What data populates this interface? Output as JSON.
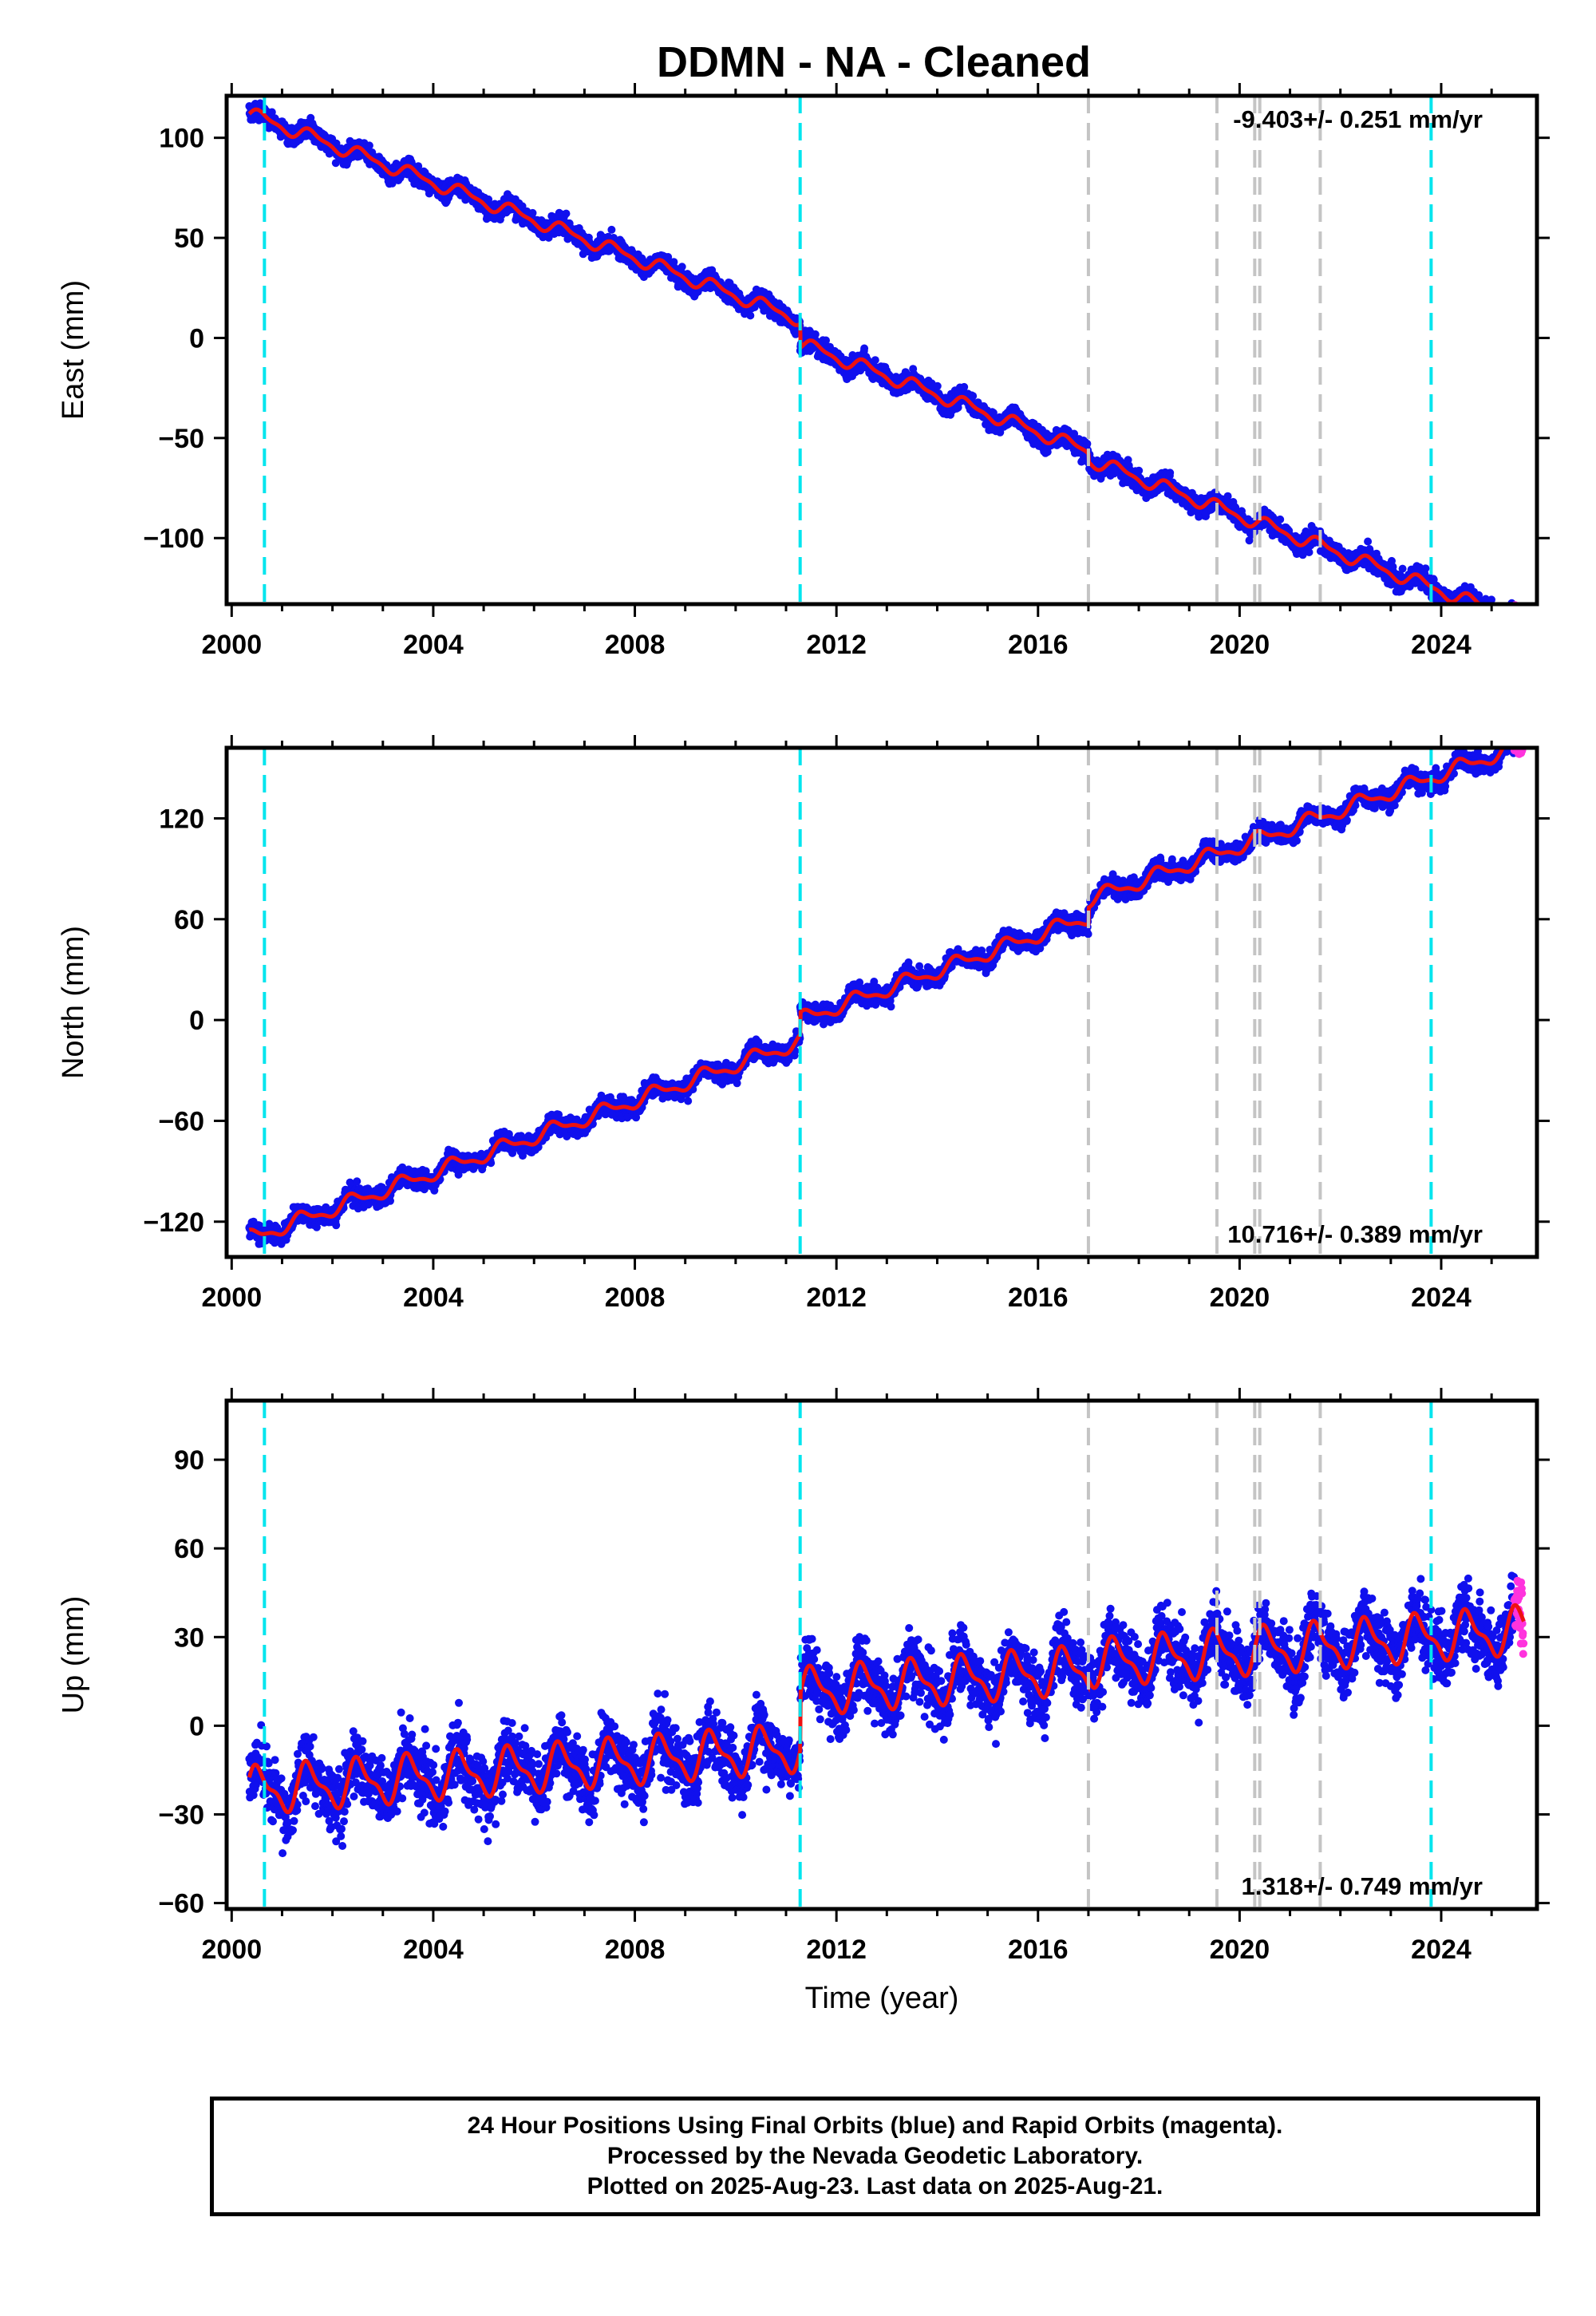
{
  "title": "DDMN  - NA - Cleaned",
  "colors": {
    "final_orbits": "#1010ee",
    "rapid_orbits": "#ff33dd",
    "model": "#ee1111",
    "equipment_change": "#00e5ee",
    "earthquake": "#c4c4c4",
    "axis": "#000000"
  },
  "chart_data": [
    {
      "type": "scatter",
      "panel": "east",
      "ylabel": "East (mm)",
      "xlabel": "",
      "xlim": [
        1999.9,
        2025.9
      ],
      "ylim": [
        -133,
        121
      ],
      "xticks": [
        2000,
        2004,
        2008,
        2012,
        2016,
        2020,
        2024
      ],
      "xtick_labels": [
        "2000",
        "2004",
        "2008",
        "2012",
        "2016",
        "2020",
        "2024"
      ],
      "yticks": [
        100,
        50,
        0,
        -50,
        -100
      ],
      "ytick_labels": [
        "100",
        "50",
        "0",
        "−50",
        "−100"
      ],
      "rate_annotation": "-9.403+/- 0.251 mm/yr",
      "annotation_position": "top-right",
      "series": [
        {
          "role": "model",
          "model": {
            "t0": 2000.35,
            "v0": 112,
            "rate": -9.403,
            "amp": 3.0,
            "phase": 0.0,
            "offsets": [
              {
                "t": 2011.28,
                "dy": -12
              },
              {
                "t": 2017.0,
                "dy": -4
              }
            ]
          },
          "noise": 3.0
        }
      ]
    },
    {
      "type": "scatter",
      "panel": "north",
      "ylabel": "North (mm)",
      "xlabel": "",
      "xlim": [
        1999.9,
        2025.9
      ],
      "ylim": [
        -141,
        162
      ],
      "xticks": [
        2000,
        2004,
        2008,
        2012,
        2016,
        2020,
        2024
      ],
      "xtick_labels": [
        "2000",
        "2004",
        "2008",
        "2012",
        "2016",
        "2020",
        "2024"
      ],
      "yticks": [
        120,
        60,
        0,
        -60,
        -120
      ],
      "ytick_labels": [
        "120",
        "60",
        "0",
        "−60",
        "−120"
      ],
      "rate_annotation": "10.716+/- 0.389 mm/yr",
      "annotation_position": "bottom-right",
      "series": [
        {
          "role": "model",
          "model": {
            "t0": 2000.35,
            "v0": -130,
            "rate": 10.716,
            "amp": 4.0,
            "phase": 1.2,
            "offsets": [
              {
                "t": 2011.28,
                "dy": 13
              },
              {
                "t": 2017.0,
                "dy": 10
              }
            ]
          },
          "noise": 3.5
        }
      ]
    },
    {
      "type": "scatter",
      "panel": "up",
      "ylabel": "Up (mm)",
      "xlabel": "Time (year)",
      "xlim": [
        1999.9,
        2025.9
      ],
      "ylim": [
        -62,
        110
      ],
      "xticks": [
        2000,
        2004,
        2008,
        2012,
        2016,
        2020,
        2024
      ],
      "xtick_labels": [
        "2000",
        "2004",
        "2008",
        "2012",
        "2016",
        "2020",
        "2024"
      ],
      "yticks": [
        90,
        60,
        30,
        0,
        -30,
        -60
      ],
      "ytick_labels": [
        "90",
        "60",
        "30",
        "0",
        "−30",
        "−60"
      ],
      "rate_annotation": "1.318+/- 0.749 mm/yr",
      "annotation_position": "bottom-right",
      "series": [
        {
          "role": "model",
          "model": {
            "t0": 2000.35,
            "v0": -22,
            "rate": 1.318,
            "amp": 7.0,
            "phase": 0.4,
            "offsets": [
              {
                "t": 2011.28,
                "dy": 19
              },
              {
                "t": 2017.0,
                "dy": 2
              }
            ]
          },
          "noise": 7.0
        }
      ]
    }
  ],
  "epochs": {
    "equipment_changes": [
      2000.65,
      2011.28,
      2023.8
    ],
    "earthquakes": [
      2017.0,
      2019.55,
      2020.3,
      2020.4,
      2021.6
    ],
    "data_start": 2000.35,
    "data_end": 2025.64,
    "rapid_start": 2025.45
  },
  "footer": {
    "line1": "24 Hour Positions Using Final Orbits (blue) and Rapid Orbits (magenta).",
    "line2": "Processed by the Nevada Geodetic Laboratory.",
    "line3": "Plotted on 2025-Aug-23. Last data on 2025-Aug-21."
  }
}
